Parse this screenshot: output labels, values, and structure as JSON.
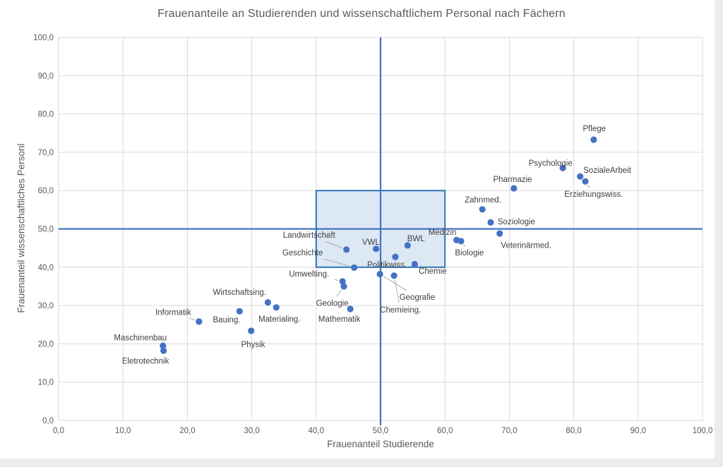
{
  "chart_data": {
    "type": "scatter",
    "title": "Frauenanteile an Studierenden und wissenschaftlichem Personal nach Fächern",
    "xlabel": "Frauenanteil Studierende",
    "ylabel": "Frauenanteil wissenschaftliches Personl",
    "xlim": [
      0,
      100
    ],
    "ylim": [
      0,
      100
    ],
    "grid": true,
    "tick_step": 10,
    "x_tick_labels": [
      "0,0",
      "10,0",
      "20,0",
      "30,0",
      "40,0",
      "50,0",
      "60,0",
      "70,0",
      "80,0",
      "90,0",
      "100,0"
    ],
    "y_tick_labels": [
      "0,0",
      "10,0",
      "20,0",
      "30,0",
      "40,0",
      "50,0",
      "60,0",
      "70,0",
      "80,0",
      "90,0",
      "100,0"
    ],
    "reference_lines": {
      "vertical_x": 50,
      "horizontal_y": 50
    },
    "highlight_box": {
      "x0": 40,
      "x1": 60,
      "y0": 40,
      "y1": 60
    },
    "colors": {
      "point": "#4472c4",
      "reference_line": "#4472c4",
      "box_fill": "#d7e4f3",
      "box_stroke": "#2e75b6",
      "grid": "#d9d9d9",
      "leader": "#ababab",
      "point_label": "#404040",
      "tick_label": "#595959"
    },
    "points": [
      {
        "name": "Maschinenbau",
        "x": 16.2,
        "y": 19.5,
        "lx": 12.7,
        "ly": 21.6,
        "leader": false
      },
      {
        "name": "Eletrotechnik",
        "x": 16.3,
        "y": 18.2,
        "lx": 13.5,
        "ly": 15.6,
        "leader": false
      },
      {
        "name": "Informatik",
        "x": 21.8,
        "y": 25.8,
        "lx": 17.8,
        "ly": 28.3,
        "leader": true
      },
      {
        "name": "Bauing.",
        "x": 28.1,
        "y": 28.5,
        "lx": 26.1,
        "ly": 26.3,
        "leader": false
      },
      {
        "name": "Physik",
        "x": 29.9,
        "y": 23.4,
        "lx": 30.2,
        "ly": 19.9,
        "leader": false
      },
      {
        "name": "Wirtschaftsing.",
        "x": 32.5,
        "y": 30.8,
        "lx": 28.1,
        "ly": 33.5,
        "leader": false
      },
      {
        "name": "Materialing.",
        "x": 33.8,
        "y": 29.5,
        "lx": 34.3,
        "ly": 26.5,
        "leader": false
      },
      {
        "name": "Umwelting.",
        "x": 44.1,
        "y": 36.3,
        "lx": 38.9,
        "ly": 38.3,
        "leader": true
      },
      {
        "name": "Geologie",
        "x": 44.3,
        "y": 35.0,
        "lx": 42.5,
        "ly": 30.7,
        "leader": true
      },
      {
        "name": "Mathematik",
        "x": 45.3,
        "y": 29.1,
        "lx": 43.6,
        "ly": 26.5,
        "leader": false
      },
      {
        "name": "Landwirtschaft",
        "x": 44.7,
        "y": 44.6,
        "lx": 38.9,
        "ly": 48.4,
        "leader": true
      },
      {
        "name": "Geschichte",
        "x": 45.9,
        "y": 39.9,
        "lx": 37.9,
        "ly": 43.8,
        "leader": true
      },
      {
        "name": "VWL",
        "x": 49.3,
        "y": 44.8,
        "lx": 48.5,
        "ly": 46.6,
        "leader": false
      },
      {
        "name": "Politikwiss.",
        "x": 52.3,
        "y": 42.7,
        "lx": 51.0,
        "ly": 40.7,
        "leader": false
      },
      {
        "name": "Geografie",
        "x": 49.9,
        "y": 38.2,
        "lx": 55.7,
        "ly": 32.2,
        "leader": true
      },
      {
        "name": "Chemieing.",
        "x": 52.1,
        "y": 37.8,
        "lx": 53.1,
        "ly": 28.9,
        "leader": true
      },
      {
        "name": "BWL",
        "x": 54.2,
        "y": 45.7,
        "lx": 55.5,
        "ly": 47.5,
        "leader": false
      },
      {
        "name": "Chemie",
        "x": 55.3,
        "y": 40.8,
        "lx": 58.1,
        "ly": 39.0,
        "leader": false
      },
      {
        "name": "Medizin",
        "x": 61.8,
        "y": 47.1,
        "lx": 59.6,
        "ly": 49.2,
        "leader": true
      },
      {
        "name": "Biologie",
        "x": 62.5,
        "y": 46.8,
        "lx": 63.8,
        "ly": 43.8,
        "leader": true
      },
      {
        "name": "Soziologie",
        "x": 67.1,
        "y": 51.7,
        "lx": 71.1,
        "ly": 51.9,
        "leader": false
      },
      {
        "name": "Veterinärmed.",
        "x": 68.5,
        "y": 48.8,
        "lx": 72.6,
        "ly": 45.8,
        "leader": false
      },
      {
        "name": "Zahnmed.",
        "x": 65.8,
        "y": 55.1,
        "lx": 65.9,
        "ly": 57.6,
        "leader": false
      },
      {
        "name": "Pharmazie",
        "x": 70.7,
        "y": 60.6,
        "lx": 70.5,
        "ly": 63.0,
        "leader": false
      },
      {
        "name": "Psychologie",
        "x": 78.3,
        "y": 65.9,
        "lx": 76.4,
        "ly": 67.2,
        "leader": false
      },
      {
        "name": "SozialeArbeit",
        "x": 81.0,
        "y": 63.7,
        "lx": 85.2,
        "ly": 65.4,
        "leader": false
      },
      {
        "name": "Erziehungswiss.",
        "x": 81.8,
        "y": 62.4,
        "lx": 83.1,
        "ly": 59.1,
        "leader": true
      },
      {
        "name": "Pflege",
        "x": 83.1,
        "y": 73.3,
        "lx": 83.2,
        "ly": 76.2,
        "leader": false
      }
    ]
  }
}
